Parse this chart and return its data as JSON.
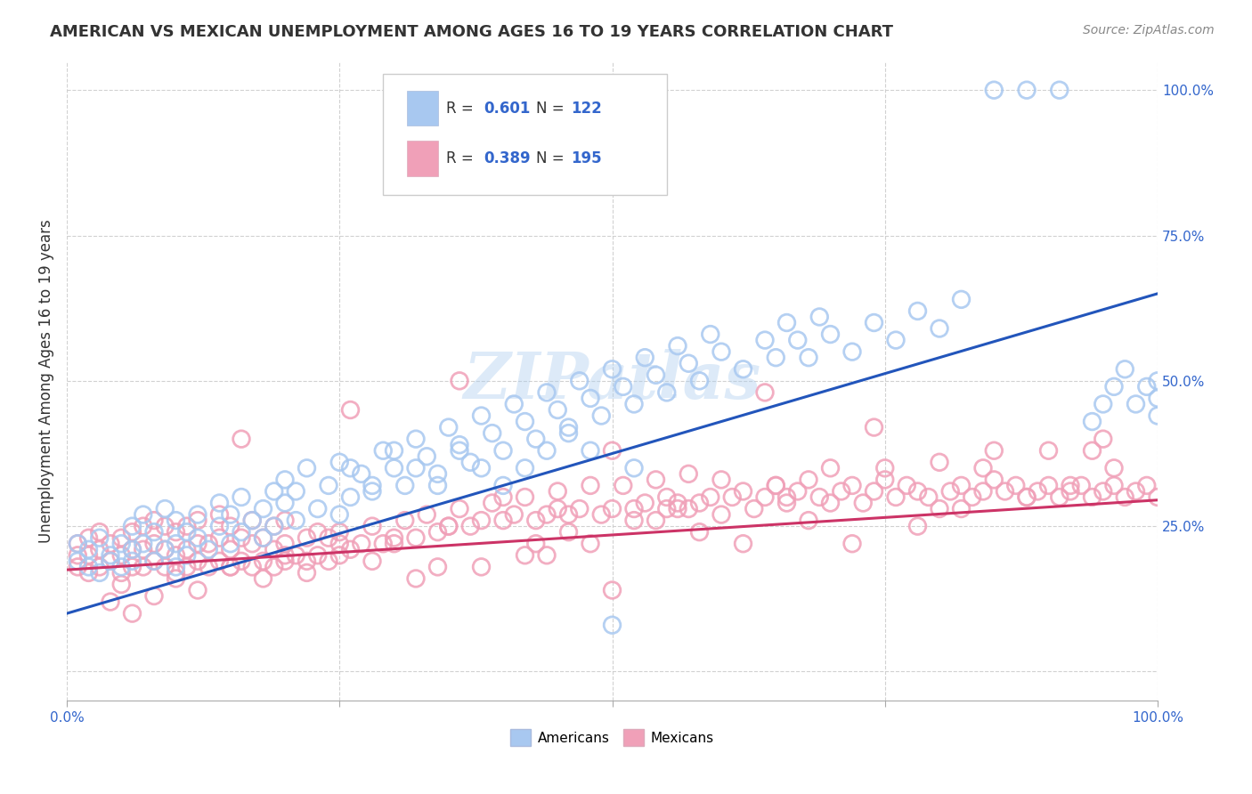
{
  "title": "AMERICAN VS MEXICAN UNEMPLOYMENT AMONG AGES 16 TO 19 YEARS CORRELATION CHART",
  "source": "Source: ZipAtlas.com",
  "ylabel": "Unemployment Among Ages 16 to 19 years",
  "xlim": [
    0.0,
    1.0
  ],
  "ylim": [
    -0.05,
    1.05
  ],
  "x_ticks": [
    0.0,
    0.25,
    0.5,
    0.75,
    1.0
  ],
  "y_ticks": [
    0.0,
    0.25,
    0.5,
    0.75,
    1.0
  ],
  "american_color": "#A8C8F0",
  "mexican_color": "#F0A0B8",
  "american_line_color": "#2255BB",
  "mexican_line_color": "#CC3366",
  "R_american": 0.601,
  "N_american": 122,
  "R_mexican": 0.389,
  "N_mexican": 195,
  "background_color": "#FFFFFF",
  "grid_color": "#CCCCCC",
  "legend_labels": [
    "Americans",
    "Mexicans"
  ],
  "american_trend_x": [
    0.0,
    1.0
  ],
  "american_trend_y": [
    0.1,
    0.65
  ],
  "mexican_trend_x": [
    0.0,
    1.0
  ],
  "mexican_trend_y": [
    0.175,
    0.295
  ],
  "american_points_x": [
    0.01,
    0.01,
    0.02,
    0.02,
    0.03,
    0.03,
    0.04,
    0.04,
    0.05,
    0.05,
    0.06,
    0.06,
    0.06,
    0.07,
    0.07,
    0.08,
    0.08,
    0.09,
    0.09,
    0.1,
    0.1,
    0.1,
    0.11,
    0.11,
    0.12,
    0.12,
    0.13,
    0.14,
    0.14,
    0.15,
    0.15,
    0.16,
    0.16,
    0.17,
    0.18,
    0.18,
    0.19,
    0.19,
    0.2,
    0.2,
    0.21,
    0.21,
    0.22,
    0.23,
    0.24,
    0.25,
    0.25,
    0.26,
    0.27,
    0.28,
    0.29,
    0.3,
    0.31,
    0.32,
    0.33,
    0.34,
    0.35,
    0.36,
    0.37,
    0.38,
    0.39,
    0.4,
    0.41,
    0.42,
    0.43,
    0.44,
    0.45,
    0.46,
    0.47,
    0.48,
    0.49,
    0.5,
    0.51,
    0.52,
    0.53,
    0.54,
    0.55,
    0.56,
    0.57,
    0.58,
    0.59,
    0.6,
    0.62,
    0.64,
    0.65,
    0.66,
    0.67,
    0.68,
    0.69,
    0.7,
    0.72,
    0.74,
    0.76,
    0.78,
    0.8,
    0.82,
    0.85,
    0.88,
    0.91,
    0.94,
    0.95,
    0.96,
    0.97,
    0.98,
    0.99,
    1.0,
    1.0,
    1.0,
    0.5,
    0.52,
    0.48,
    0.46,
    0.44,
    0.42,
    0.4,
    0.38,
    0.36,
    0.34,
    0.32,
    0.3,
    0.28,
    0.26
  ],
  "american_points_y": [
    0.19,
    0.22,
    0.18,
    0.21,
    0.17,
    0.23,
    0.2,
    0.19,
    0.22,
    0.18,
    0.21,
    0.25,
    0.19,
    0.22,
    0.27,
    0.19,
    0.24,
    0.21,
    0.28,
    0.18,
    0.22,
    0.26,
    0.24,
    0.2,
    0.23,
    0.27,
    0.21,
    0.25,
    0.29,
    0.22,
    0.27,
    0.24,
    0.3,
    0.26,
    0.28,
    0.23,
    0.31,
    0.25,
    0.29,
    0.33,
    0.26,
    0.31,
    0.35,
    0.28,
    0.32,
    0.27,
    0.36,
    0.3,
    0.34,
    0.31,
    0.38,
    0.35,
    0.32,
    0.4,
    0.37,
    0.34,
    0.42,
    0.39,
    0.36,
    0.44,
    0.41,
    0.38,
    0.46,
    0.43,
    0.4,
    0.48,
    0.45,
    0.42,
    0.5,
    0.47,
    0.44,
    0.52,
    0.49,
    0.46,
    0.54,
    0.51,
    0.48,
    0.56,
    0.53,
    0.5,
    0.58,
    0.55,
    0.52,
    0.57,
    0.54,
    0.6,
    0.57,
    0.54,
    0.61,
    0.58,
    0.55,
    0.6,
    0.57,
    0.62,
    0.59,
    0.64,
    1.0,
    1.0,
    1.0,
    0.43,
    0.46,
    0.49,
    0.52,
    0.46,
    0.49,
    0.44,
    0.47,
    0.5,
    0.08,
    0.35,
    0.38,
    0.41,
    0.38,
    0.35,
    0.32,
    0.35,
    0.38,
    0.32,
    0.35,
    0.38,
    0.32,
    0.35
  ],
  "mexican_points_x": [
    0.01,
    0.01,
    0.01,
    0.02,
    0.02,
    0.02,
    0.03,
    0.03,
    0.03,
    0.04,
    0.04,
    0.05,
    0.05,
    0.05,
    0.06,
    0.06,
    0.06,
    0.07,
    0.07,
    0.07,
    0.08,
    0.08,
    0.08,
    0.09,
    0.09,
    0.09,
    0.1,
    0.1,
    0.1,
    0.11,
    0.11,
    0.11,
    0.12,
    0.12,
    0.12,
    0.13,
    0.13,
    0.14,
    0.14,
    0.14,
    0.15,
    0.15,
    0.15,
    0.16,
    0.16,
    0.17,
    0.17,
    0.17,
    0.18,
    0.18,
    0.19,
    0.19,
    0.19,
    0.2,
    0.2,
    0.2,
    0.21,
    0.22,
    0.22,
    0.23,
    0.23,
    0.24,
    0.24,
    0.25,
    0.25,
    0.26,
    0.27,
    0.28,
    0.29,
    0.3,
    0.31,
    0.32,
    0.33,
    0.34,
    0.35,
    0.36,
    0.37,
    0.38,
    0.39,
    0.4,
    0.41,
    0.42,
    0.43,
    0.44,
    0.45,
    0.46,
    0.47,
    0.48,
    0.49,
    0.5,
    0.51,
    0.52,
    0.53,
    0.54,
    0.55,
    0.56,
    0.57,
    0.58,
    0.59,
    0.6,
    0.61,
    0.62,
    0.63,
    0.64,
    0.65,
    0.66,
    0.67,
    0.68,
    0.69,
    0.7,
    0.71,
    0.72,
    0.73,
    0.74,
    0.75,
    0.76,
    0.77,
    0.78,
    0.79,
    0.8,
    0.81,
    0.82,
    0.83,
    0.84,
    0.85,
    0.86,
    0.87,
    0.88,
    0.89,
    0.9,
    0.91,
    0.92,
    0.93,
    0.94,
    0.95,
    0.96,
    0.97,
    0.98,
    0.99,
    1.0,
    0.5,
    0.3,
    0.7,
    0.4,
    0.6,
    0.2,
    0.8,
    0.35,
    0.65,
    0.45,
    0.55,
    0.25,
    0.75,
    0.15,
    0.85,
    0.05,
    0.95,
    0.1,
    0.9,
    0.5,
    0.42,
    0.58,
    0.38,
    0.62,
    0.32,
    0.68,
    0.28,
    0.72,
    0.22,
    0.78,
    0.18,
    0.82,
    0.12,
    0.88,
    0.08,
    0.92,
    0.04,
    0.96,
    0.48,
    0.52,
    0.44,
    0.56,
    0.34,
    0.66,
    0.36,
    0.64,
    0.26,
    0.74,
    0.16,
    0.84,
    0.06,
    0.94,
    0.46,
    0.54,
    0.43,
    0.57
  ],
  "mexican_points_y": [
    0.18,
    0.2,
    0.22,
    0.17,
    0.2,
    0.23,
    0.18,
    0.21,
    0.24,
    0.19,
    0.22,
    0.17,
    0.2,
    0.23,
    0.18,
    0.21,
    0.24,
    0.18,
    0.21,
    0.25,
    0.19,
    0.22,
    0.26,
    0.18,
    0.21,
    0.25,
    0.17,
    0.2,
    0.24,
    0.18,
    0.21,
    0.25,
    0.19,
    0.22,
    0.26,
    0.18,
    0.22,
    0.19,
    0.23,
    0.27,
    0.18,
    0.21,
    0.25,
    0.19,
    0.23,
    0.18,
    0.22,
    0.26,
    0.19,
    0.23,
    0.18,
    0.21,
    0.25,
    0.19,
    0.22,
    0.26,
    0.2,
    0.19,
    0.23,
    0.2,
    0.24,
    0.19,
    0.23,
    0.2,
    0.24,
    0.21,
    0.22,
    0.25,
    0.22,
    0.23,
    0.26,
    0.23,
    0.27,
    0.24,
    0.25,
    0.28,
    0.25,
    0.26,
    0.29,
    0.26,
    0.27,
    0.3,
    0.26,
    0.27,
    0.31,
    0.27,
    0.28,
    0.32,
    0.27,
    0.28,
    0.32,
    0.28,
    0.29,
    0.33,
    0.28,
    0.29,
    0.34,
    0.29,
    0.3,
    0.27,
    0.3,
    0.31,
    0.28,
    0.3,
    0.32,
    0.29,
    0.31,
    0.33,
    0.3,
    0.29,
    0.31,
    0.32,
    0.29,
    0.31,
    0.33,
    0.3,
    0.32,
    0.31,
    0.3,
    0.28,
    0.31,
    0.32,
    0.3,
    0.31,
    0.33,
    0.31,
    0.32,
    0.3,
    0.31,
    0.32,
    0.3,
    0.31,
    0.32,
    0.3,
    0.31,
    0.32,
    0.3,
    0.31,
    0.32,
    0.3,
    0.38,
    0.22,
    0.35,
    0.3,
    0.33,
    0.2,
    0.36,
    0.25,
    0.32,
    0.28,
    0.3,
    0.22,
    0.35,
    0.18,
    0.38,
    0.15,
    0.4,
    0.16,
    0.38,
    0.14,
    0.2,
    0.24,
    0.18,
    0.22,
    0.16,
    0.26,
    0.19,
    0.22,
    0.17,
    0.25,
    0.16,
    0.28,
    0.14,
    0.3,
    0.13,
    0.32,
    0.12,
    0.35,
    0.22,
    0.26,
    0.2,
    0.28,
    0.18,
    0.3,
    0.5,
    0.48,
    0.45,
    0.42,
    0.4,
    0.35,
    0.1,
    0.38,
    0.24,
    0.26,
    0.22,
    0.28
  ]
}
